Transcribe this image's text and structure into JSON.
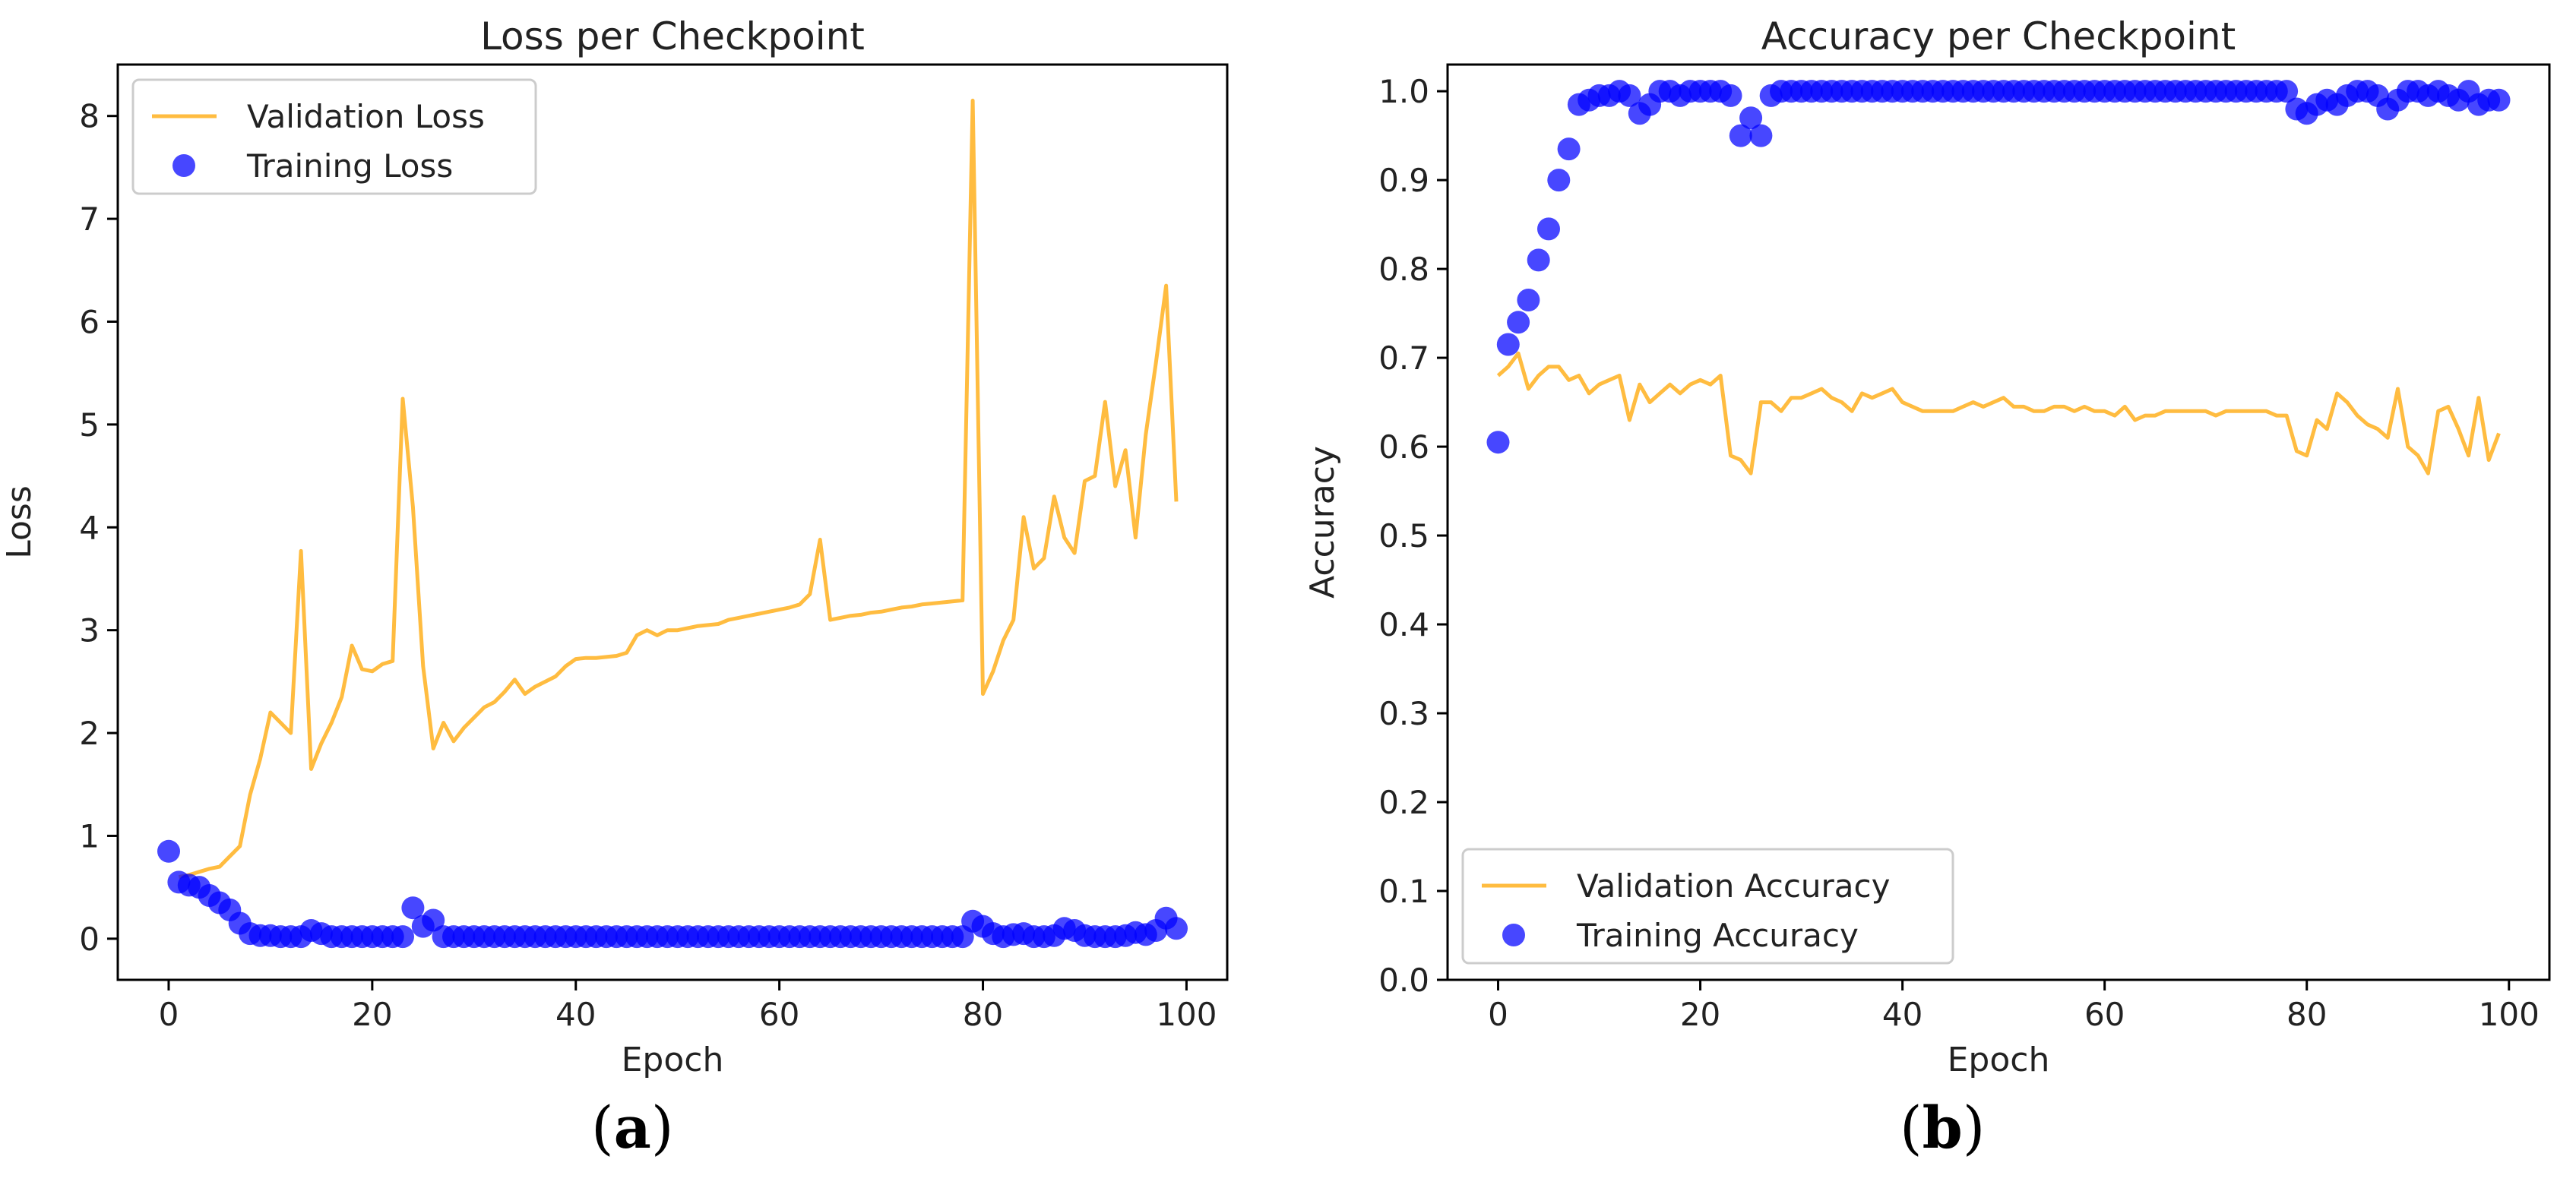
{
  "chart_data": [
    {
      "type": "line",
      "panel_label": "a",
      "title": "Loss per Checkpoint",
      "xlabel": "Epoch",
      "ylabel": "Loss",
      "xlim": [
        -5,
        104
      ],
      "ylim": [
        -0.4,
        8.5
      ],
      "xticks": [
        0,
        20,
        40,
        60,
        80,
        100
      ],
      "yticks": [
        0,
        1,
        2,
        3,
        4,
        5,
        6,
        7,
        8
      ],
      "legend_position": "upper-left",
      "grid": false,
      "series": [
        {
          "name": "Validation Loss",
          "style": "line",
          "color": "#ffa500",
          "x": [
            1,
            2,
            3,
            4,
            5,
            6,
            7,
            8,
            9,
            10,
            11,
            12,
            13,
            14,
            15,
            16,
            17,
            18,
            19,
            20,
            21,
            22,
            23,
            24,
            25,
            26,
            27,
            28,
            29,
            30,
            31,
            32,
            33,
            34,
            35,
            36,
            37,
            38,
            39,
            40,
            41,
            42,
            43,
            44,
            45,
            46,
            47,
            48,
            49,
            50,
            51,
            52,
            53,
            54,
            55,
            56,
            57,
            58,
            59,
            60,
            61,
            62,
            63,
            64,
            65,
            66,
            67,
            68,
            69,
            70,
            71,
            72,
            73,
            74,
            75,
            76,
            77,
            78,
            79,
            80,
            81,
            82,
            83,
            84,
            85,
            86,
            87,
            88,
            89,
            90,
            91,
            92,
            93,
            94,
            95,
            96,
            97,
            98,
            99
          ],
          "y": [
            0.6,
            0.62,
            0.65,
            0.68,
            0.7,
            0.8,
            0.9,
            1.4,
            1.75,
            2.2,
            2.1,
            2.0,
            3.77,
            1.65,
            1.9,
            2.1,
            2.35,
            2.85,
            2.62,
            2.6,
            2.67,
            2.7,
            5.25,
            4.2,
            2.65,
            1.85,
            2.1,
            1.92,
            2.05,
            2.15,
            2.25,
            2.3,
            2.4,
            2.52,
            2.38,
            2.45,
            2.5,
            2.55,
            2.65,
            2.72,
            2.73,
            2.73,
            2.74,
            2.75,
            2.78,
            2.95,
            3.0,
            2.95,
            3.0,
            3.0,
            3.02,
            3.04,
            3.05,
            3.06,
            3.1,
            3.12,
            3.14,
            3.16,
            3.18,
            3.2,
            3.22,
            3.25,
            3.35,
            3.88,
            3.1,
            3.12,
            3.14,
            3.15,
            3.17,
            3.18,
            3.2,
            3.22,
            3.23,
            3.25,
            3.26,
            3.27,
            3.28,
            3.29,
            8.15,
            2.38,
            2.6,
            2.9,
            3.1,
            4.1,
            3.6,
            3.7,
            4.3,
            3.9,
            3.75,
            4.45,
            4.5,
            5.22,
            4.4,
            4.75,
            3.9,
            4.9,
            5.6,
            6.35,
            4.25
          ]
        },
        {
          "name": "Training Loss",
          "style": "scatter",
          "color": "#0000ff",
          "x": [
            0,
            1,
            2,
            3,
            4,
            5,
            6,
            7,
            8,
            9,
            10,
            11,
            12,
            13,
            14,
            15,
            16,
            17,
            18,
            19,
            20,
            21,
            22,
            23,
            24,
            25,
            26,
            27,
            28,
            29,
            30,
            31,
            32,
            33,
            34,
            35,
            36,
            37,
            38,
            39,
            40,
            41,
            42,
            43,
            44,
            45,
            46,
            47,
            48,
            49,
            50,
            51,
            52,
            53,
            54,
            55,
            56,
            57,
            58,
            59,
            60,
            61,
            62,
            63,
            64,
            65,
            66,
            67,
            68,
            69,
            70,
            71,
            72,
            73,
            74,
            75,
            76,
            77,
            78,
            79,
            80,
            81,
            82,
            83,
            84,
            85,
            86,
            87,
            88,
            89,
            90,
            91,
            92,
            93,
            94,
            95,
            96,
            97,
            98,
            99
          ],
          "y": [
            0.85,
            0.55,
            0.52,
            0.5,
            0.42,
            0.35,
            0.28,
            0.15,
            0.05,
            0.03,
            0.03,
            0.02,
            0.02,
            0.02,
            0.08,
            0.05,
            0.02,
            0.02,
            0.02,
            0.02,
            0.02,
            0.02,
            0.02,
            0.02,
            0.3,
            0.12,
            0.18,
            0.02,
            0.02,
            0.02,
            0.02,
            0.02,
            0.02,
            0.02,
            0.02,
            0.02,
            0.02,
            0.02,
            0.02,
            0.02,
            0.02,
            0.02,
            0.02,
            0.02,
            0.02,
            0.02,
            0.02,
            0.02,
            0.02,
            0.02,
            0.02,
            0.02,
            0.02,
            0.02,
            0.02,
            0.02,
            0.02,
            0.02,
            0.02,
            0.02,
            0.02,
            0.02,
            0.02,
            0.02,
            0.02,
            0.02,
            0.02,
            0.02,
            0.02,
            0.02,
            0.02,
            0.02,
            0.02,
            0.02,
            0.02,
            0.02,
            0.02,
            0.02,
            0.02,
            0.17,
            0.12,
            0.05,
            0.02,
            0.04,
            0.05,
            0.02,
            0.02,
            0.03,
            0.1,
            0.08,
            0.03,
            0.02,
            0.02,
            0.02,
            0.03,
            0.06,
            0.04,
            0.08,
            0.2,
            0.1
          ]
        }
      ]
    },
    {
      "type": "line",
      "panel_label": "b",
      "title": "Accuracy per Checkpoint",
      "xlabel": "Epoch",
      "ylabel": "Accuracy",
      "xlim": [
        -5,
        104
      ],
      "ylim": [
        0.0,
        1.03
      ],
      "xticks": [
        0,
        20,
        40,
        60,
        80,
        100
      ],
      "yticks": [
        0.0,
        0.1,
        0.2,
        0.3,
        0.4,
        0.5,
        0.6,
        0.7,
        0.8,
        0.9,
        1.0
      ],
      "legend_position": "lower-left",
      "grid": false,
      "series": [
        {
          "name": "Validation Accuracy",
          "style": "line",
          "color": "#ffa500",
          "x": [
            0,
            1,
            2,
            3,
            4,
            5,
            6,
            7,
            8,
            9,
            10,
            11,
            12,
            13,
            14,
            15,
            16,
            17,
            18,
            19,
            20,
            21,
            22,
            23,
            24,
            25,
            26,
            27,
            28,
            29,
            30,
            31,
            32,
            33,
            34,
            35,
            36,
            37,
            38,
            39,
            40,
            41,
            42,
            43,
            44,
            45,
            46,
            47,
            48,
            49,
            50,
            51,
            52,
            53,
            54,
            55,
            56,
            57,
            58,
            59,
            60,
            61,
            62,
            63,
            64,
            65,
            66,
            67,
            68,
            69,
            70,
            71,
            72,
            73,
            74,
            75,
            76,
            77,
            78,
            79,
            80,
            81,
            82,
            83,
            84,
            85,
            86,
            87,
            88,
            89,
            90,
            91,
            92,
            93,
            94,
            95,
            96,
            97,
            98,
            99
          ],
          "y": [
            0.68,
            0.69,
            0.705,
            0.665,
            0.68,
            0.69,
            0.69,
            0.675,
            0.68,
            0.66,
            0.67,
            0.675,
            0.68,
            0.63,
            0.67,
            0.65,
            0.66,
            0.67,
            0.66,
            0.67,
            0.675,
            0.67,
            0.68,
            0.59,
            0.585,
            0.57,
            0.65,
            0.65,
            0.64,
            0.655,
            0.655,
            0.66,
            0.665,
            0.655,
            0.65,
            0.64,
            0.66,
            0.655,
            0.66,
            0.665,
            0.65,
            0.645,
            0.64,
            0.64,
            0.64,
            0.64,
            0.645,
            0.65,
            0.645,
            0.65,
            0.655,
            0.645,
            0.645,
            0.64,
            0.64,
            0.645,
            0.645,
            0.64,
            0.645,
            0.64,
            0.64,
            0.635,
            0.645,
            0.63,
            0.635,
            0.635,
            0.64,
            0.64,
            0.64,
            0.64,
            0.64,
            0.635,
            0.64,
            0.64,
            0.64,
            0.64,
            0.64,
            0.635,
            0.635,
            0.595,
            0.59,
            0.63,
            0.62,
            0.66,
            0.65,
            0.635,
            0.625,
            0.62,
            0.61,
            0.665,
            0.6,
            0.59,
            0.57,
            0.64,
            0.645,
            0.62,
            0.59,
            0.655,
            0.585,
            0.615
          ]
        },
        {
          "name": "Training Accuracy",
          "style": "scatter",
          "color": "#0000ff",
          "x": [
            0,
            1,
            2,
            3,
            4,
            5,
            6,
            7,
            8,
            9,
            10,
            11,
            12,
            13,
            14,
            15,
            16,
            17,
            18,
            19,
            20,
            21,
            22,
            23,
            24,
            25,
            26,
            27,
            28,
            29,
            30,
            31,
            32,
            33,
            34,
            35,
            36,
            37,
            38,
            39,
            40,
            41,
            42,
            43,
            44,
            45,
            46,
            47,
            48,
            49,
            50,
            51,
            52,
            53,
            54,
            55,
            56,
            57,
            58,
            59,
            60,
            61,
            62,
            63,
            64,
            65,
            66,
            67,
            68,
            69,
            70,
            71,
            72,
            73,
            74,
            75,
            76,
            77,
            78,
            79,
            80,
            81,
            82,
            83,
            84,
            85,
            86,
            87,
            88,
            89,
            90,
            91,
            92,
            93,
            94,
            95,
            96,
            97,
            98,
            99
          ],
          "y": [
            0.605,
            0.715,
            0.74,
            0.765,
            0.81,
            0.845,
            0.9,
            0.935,
            0.985,
            0.99,
            0.995,
            0.995,
            1.0,
            0.995,
            0.975,
            0.985,
            1.0,
            1.0,
            0.995,
            1.0,
            1.0,
            1.0,
            1.0,
            0.995,
            0.95,
            0.97,
            0.95,
            0.995,
            1.0,
            1.0,
            1.0,
            1.0,
            1.0,
            1.0,
            1.0,
            1.0,
            1.0,
            1.0,
            1.0,
            1.0,
            1.0,
            1.0,
            1.0,
            1.0,
            1.0,
            1.0,
            1.0,
            1.0,
            1.0,
            1.0,
            1.0,
            1.0,
            1.0,
            1.0,
            1.0,
            1.0,
            1.0,
            1.0,
            1.0,
            1.0,
            1.0,
            1.0,
            1.0,
            1.0,
            1.0,
            1.0,
            1.0,
            1.0,
            1.0,
            1.0,
            1.0,
            1.0,
            1.0,
            1.0,
            1.0,
            1.0,
            1.0,
            1.0,
            1.0,
            0.98,
            0.975,
            0.985,
            0.99,
            0.985,
            0.995,
            1.0,
            1.0,
            0.995,
            0.98,
            0.99,
            1.0,
            1.0,
            0.995,
            1.0,
            0.995,
            0.99,
            1.0,
            0.985,
            0.99,
            0.99
          ]
        }
      ]
    }
  ]
}
